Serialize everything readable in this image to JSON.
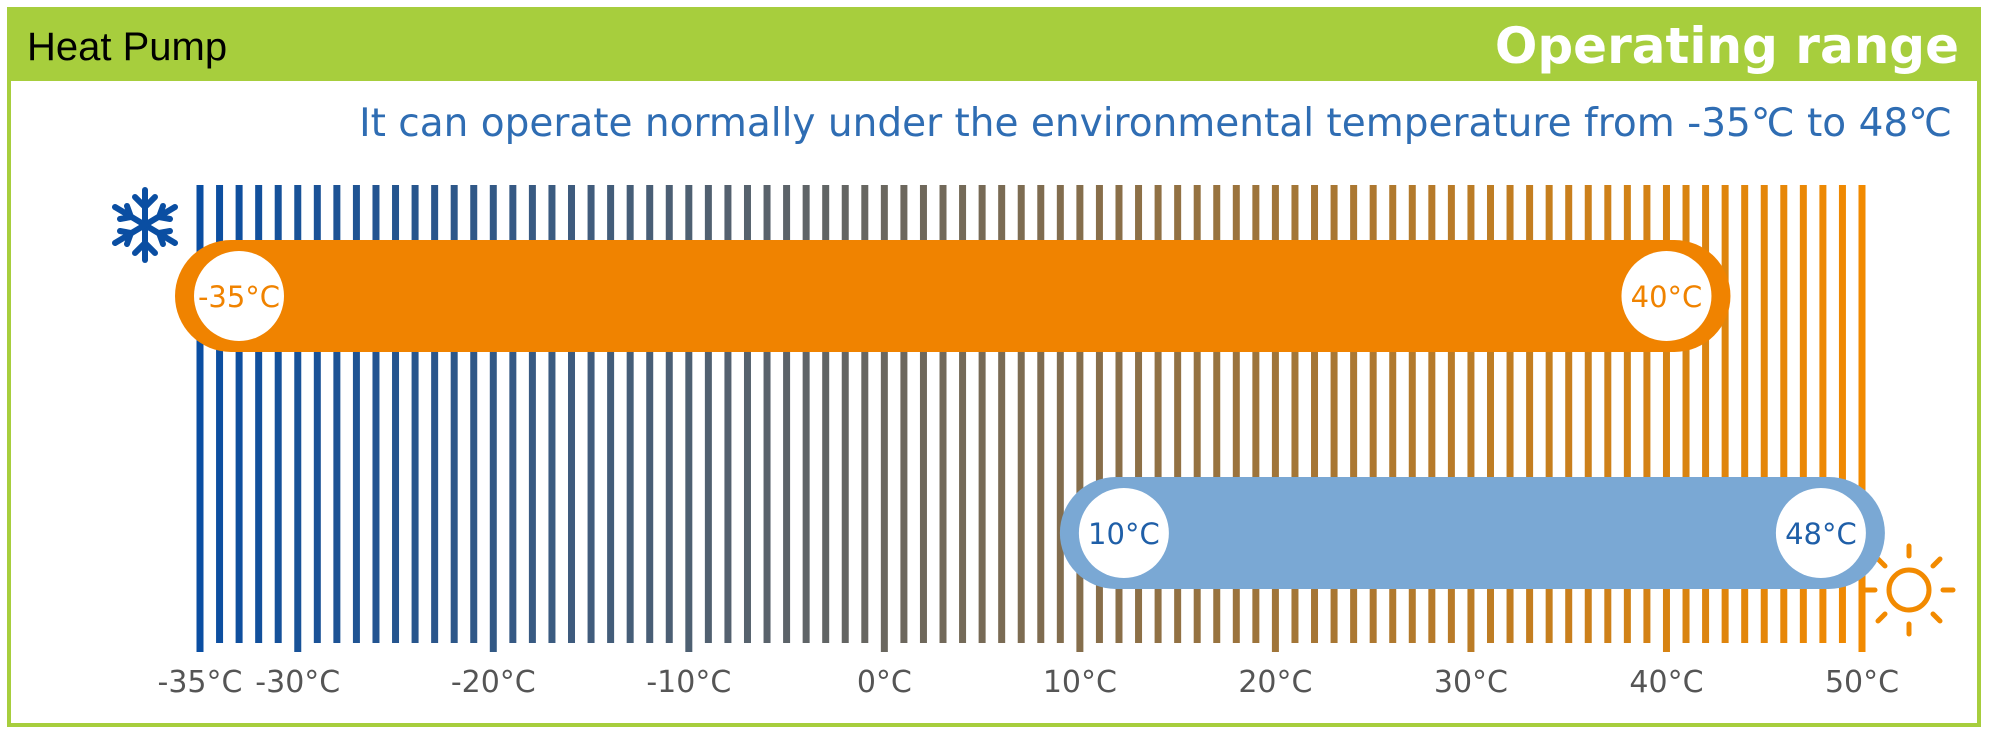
{
  "header": {
    "left_label": "Heat Pump",
    "right_label": "Operating range"
  },
  "subtitle": "It can operate normally under the environmental temperature from -35℃ to 48℃",
  "icons": {
    "cold": "snowflake-icon",
    "hot": "sun-icon"
  },
  "colors": {
    "cold": "#0a4ea2",
    "hot": "#f28a00",
    "heating_band": "#f08300",
    "cooling_band": "#7aa8d4",
    "accent": "#a7ce3d"
  },
  "chart_data": {
    "type": "range-bar",
    "x_range": [
      -35,
      50
    ],
    "x_unit": "°C",
    "ticks": [
      {
        "value": -35,
        "label": "-35°C"
      },
      {
        "value": -30,
        "label": "-30°C"
      },
      {
        "value": -20,
        "label": "-20°C"
      },
      {
        "value": -10,
        "label": "-10°C"
      },
      {
        "value": 0,
        "label": "0°C"
      },
      {
        "value": 10,
        "label": "10°C"
      },
      {
        "value": 20,
        "label": "20°C"
      },
      {
        "value": 30,
        "label": "30°C"
      },
      {
        "value": 40,
        "label": "40°C"
      },
      {
        "value": 50,
        "label": "50°C"
      }
    ],
    "ranges": [
      {
        "min": -35,
        "max": 40,
        "min_label": "-35°C",
        "max_label": "40°C",
        "color": "#f08300",
        "text_color": "#f08300"
      },
      {
        "min": 10,
        "max": 48,
        "min_label": "10°C",
        "max_label": "48°C",
        "color": "#7aa8d4",
        "text_color": "#1f5fa8"
      }
    ]
  }
}
